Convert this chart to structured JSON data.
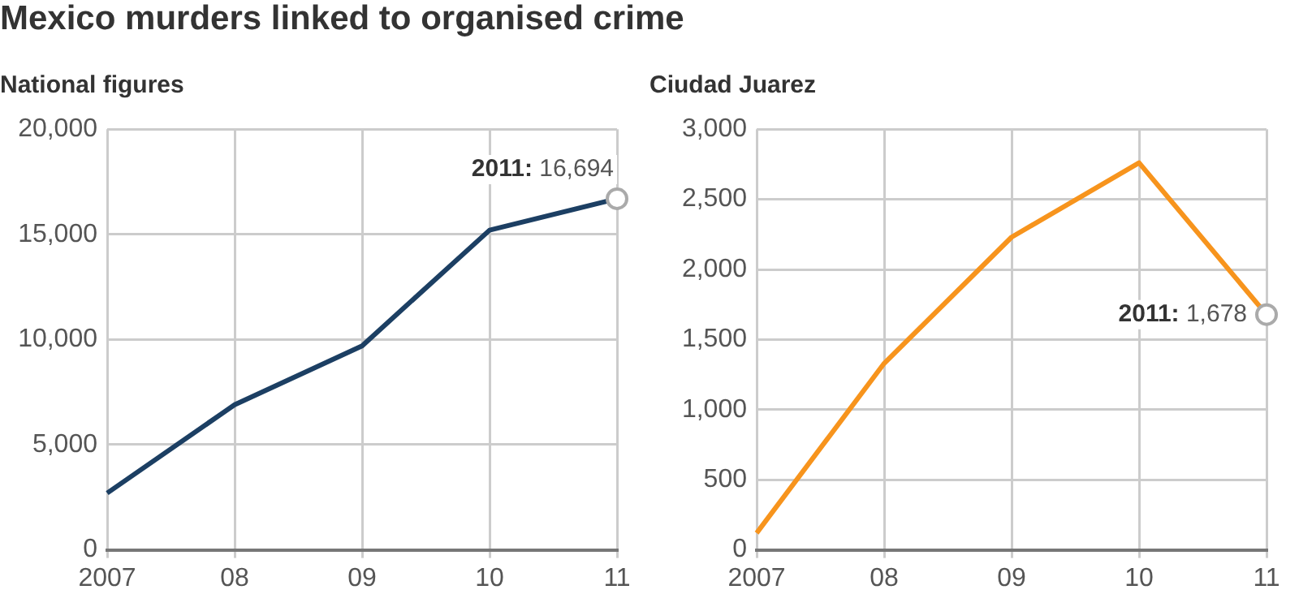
{
  "chart_data": [
    {
      "type": "line",
      "title": "Mexico murders linked to organised crime",
      "subtitle": "National figures",
      "categories": [
        "2007",
        "08",
        "09",
        "10",
        "11"
      ],
      "series": [
        {
          "color": "#1c3f63",
          "values": [
            2700,
            6900,
            9700,
            15200,
            16694
          ]
        }
      ],
      "ylim": [
        0,
        20000
      ],
      "yticks": [
        {
          "value": 0,
          "label": "0"
        },
        {
          "value": 5000,
          "label": "5,000"
        },
        {
          "value": 10000,
          "label": "10,000"
        },
        {
          "value": 15000,
          "label": "15,000"
        },
        {
          "value": 20000,
          "label": "20,000"
        }
      ],
      "grid": true,
      "legend": false,
      "marker": "none",
      "line_style": "solid",
      "annotations": [
        {
          "text": "2011: 16,694",
          "x": "11",
          "y": 16694
        }
      ]
    },
    {
      "type": "line",
      "title": "Ciudad Juarez",
      "categories": [
        "2007",
        "08",
        "09",
        "10",
        "11"
      ],
      "series": [
        {
          "color": "#f7941d",
          "values": [
            120,
            1330,
            2230,
            2760,
            1678
          ]
        }
      ],
      "ylim": [
        0,
        3000
      ],
      "yticks": [
        {
          "value": 0,
          "label": "0"
        },
        {
          "value": 500,
          "label": "500"
        },
        {
          "value": 1000,
          "label": "1,000"
        },
        {
          "value": 1500,
          "label": "1,500"
        },
        {
          "value": 2000,
          "label": "2,000"
        },
        {
          "value": 2500,
          "label": "2,500"
        },
        {
          "value": 3000,
          "label": "3,000"
        }
      ],
      "grid": true,
      "legend": false,
      "marker": "none",
      "line_style": "solid",
      "annotations": [
        {
          "text": "2011: 1,678",
          "x": "11",
          "y": 1678
        }
      ]
    }
  ]
}
